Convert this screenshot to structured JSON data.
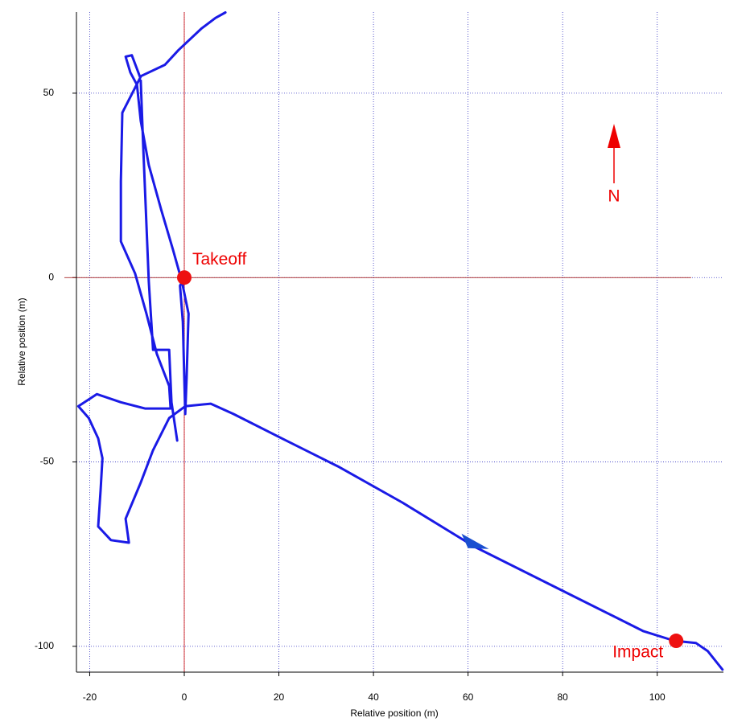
{
  "chart_data": {
    "type": "line",
    "xlabel": "Relative position (m)",
    "ylabel": "Relative position (m)",
    "xlim": [
      -22.8,
      114
    ],
    "ylim": [
      -107,
      72
    ],
    "xticks": [
      -20,
      0,
      20,
      40,
      60,
      80,
      100
    ],
    "yticks": [
      -100,
      -50,
      0,
      50
    ],
    "grid": true,
    "color": "#1a1ae6",
    "x": [
      0,
      -0.9,
      -0.3,
      0,
      0.2,
      0.5,
      0.9,
      -0.5,
      -2.4,
      -4.9,
      -7.5,
      -9.2,
      -10.0,
      -11.4,
      -12.4,
      -11.1,
      -10.0,
      -9.4,
      -4.1,
      -1.2,
      3.6,
      6.6,
      8.7,
      null,
      -9.2,
      -8.7,
      -8.0,
      -7.5,
      -6.6,
      -3.2,
      -2.7,
      -1.5,
      null,
      -9.2,
      -13.1,
      -13.4,
      -13.4,
      -10.4,
      -8.0,
      -5.8,
      -3.2,
      -2.9,
      -8.3,
      -13.4,
      -18.5,
      -22.4,
      -20.2,
      -18.2,
      -17.3,
      -17.7,
      -18.2,
      -15.5,
      -11.7,
      -12.4,
      -9.2,
      -6.6,
      -3.2,
      0.2,
      5.6,
      10.4,
      20.6,
      32.5,
      46.1,
      61.4,
      80.1,
      97.1,
      103.6,
      108.2,
      110.7,
      113.8
    ],
    "values": [
      0,
      -2.2,
      -12.0,
      -27.2,
      -37.0,
      -27.2,
      -9.8,
      -1.1,
      7.6,
      18.5,
      30.5,
      42.5,
      52.3,
      55.6,
      59.9,
      60.3,
      56.6,
      54.5,
      57.7,
      61.7,
      67.5,
      70.4,
      71.9,
      null,
      53.4,
      35.9,
      14.2,
      -1.1,
      -19.6,
      -19.6,
      -33.8,
      -44.2,
      null,
      54.5,
      44.7,
      26.1,
      9.8,
      1.1,
      -9.8,
      -20.7,
      -29.4,
      -35.5,
      -35.5,
      -33.8,
      -31.6,
      -34.9,
      -38.1,
      -43.6,
      -49.0,
      -57.7,
      -67.5,
      -71.2,
      -71.9,
      -65.4,
      -55.6,
      -46.8,
      -38.1,
      -34.9,
      -34.2,
      -37.0,
      -43.6,
      -51.2,
      -61.0,
      -73.0,
      -85.0,
      -95.9,
      -98.5,
      -99.1,
      -101.3,
      -106.3
    ],
    "arrow": {
      "x": 61,
      "y": -72.5
    },
    "points": [
      {
        "label": "Takeoff",
        "x": 0,
        "y": 0
      },
      {
        "label": "Impact",
        "x": 104,
        "y": -98.5
      }
    ],
    "point_color": "#ee1111",
    "north_label": "N"
  }
}
